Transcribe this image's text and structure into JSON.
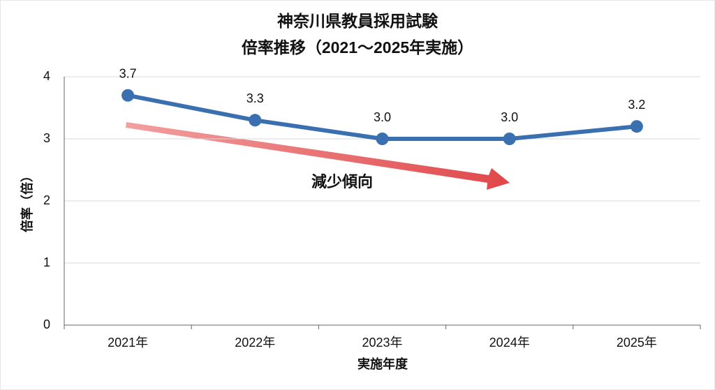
{
  "chart_data": {
    "type": "line",
    "title": "神奈川県教員採用試験",
    "subtitle": "倍率推移（2021〜2025年実施）",
    "y_label": "倍率（倍）",
    "x_label": "実施年度",
    "annotation": "減少傾向",
    "categories": [
      "2021年",
      "2022年",
      "2023年",
      "2024年",
      "2025年"
    ],
    "values": [
      3.7,
      3.3,
      3.0,
      3.0,
      3.2
    ],
    "value_labels": [
      "3.7",
      "3.3",
      "3.0",
      "3.0",
      "3.2"
    ],
    "color": "#3a6fb0",
    "ylim": [
      0,
      4
    ],
    "yticks": [
      0,
      1,
      2,
      3,
      4
    ],
    "grid": true
  }
}
